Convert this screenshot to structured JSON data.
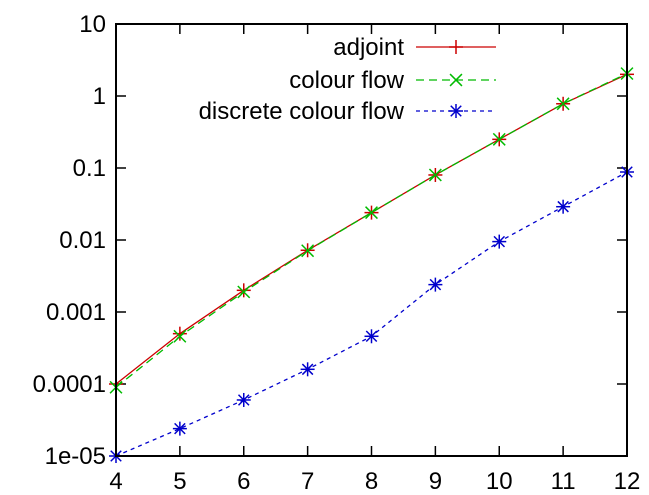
{
  "chart_data": {
    "type": "line",
    "title": "",
    "xlabel": "",
    "ylabel": "",
    "x": [
      4,
      5,
      6,
      7,
      8,
      9,
      10,
      11,
      12
    ],
    "xlim": [
      4,
      12
    ],
    "ylim": [
      1e-05,
      10
    ],
    "yscale": "log",
    "grid": false,
    "legend_position": "top-left",
    "x_ticks": [
      {
        "value": 4,
        "label": "4"
      },
      {
        "value": 5,
        "label": "5"
      },
      {
        "value": 6,
        "label": "6"
      },
      {
        "value": 7,
        "label": "7"
      },
      {
        "value": 8,
        "label": "8"
      },
      {
        "value": 9,
        "label": "9"
      },
      {
        "value": 10,
        "label": "10"
      },
      {
        "value": 11,
        "label": "11"
      },
      {
        "value": 12,
        "label": "12"
      }
    ],
    "y_ticks": [
      {
        "value": 1e-05,
        "label": "1e-05"
      },
      {
        "value": 0.0001,
        "label": "0.0001"
      },
      {
        "value": 0.001,
        "label": "0.001"
      },
      {
        "value": 0.01,
        "label": "0.01"
      },
      {
        "value": 0.1,
        "label": "0.1"
      },
      {
        "value": 1,
        "label": "1"
      },
      {
        "value": 10,
        "label": "10"
      }
    ],
    "series": [
      {
        "name": "adjoint",
        "color": "#cc0000",
        "line": "solid",
        "marker": "plus",
        "values": [
          0.0001,
          0.0005,
          0.002,
          0.0072,
          0.024,
          0.08,
          0.25,
          0.78,
          2.0
        ]
      },
      {
        "name": "colour flow",
        "color": "#00bb00",
        "line": "dashed",
        "marker": "cross",
        "values": [
          9e-05,
          0.00046,
          0.0019,
          0.0071,
          0.024,
          0.08,
          0.25,
          0.78,
          2.05
        ]
      },
      {
        "name": "discrete colour flow",
        "color": "#0000cc",
        "line": "dotted",
        "marker": "star",
        "values": [
          1e-05,
          2.4e-05,
          6e-05,
          0.00016,
          0.00046,
          0.0024,
          0.0095,
          0.029,
          0.088
        ]
      }
    ]
  }
}
